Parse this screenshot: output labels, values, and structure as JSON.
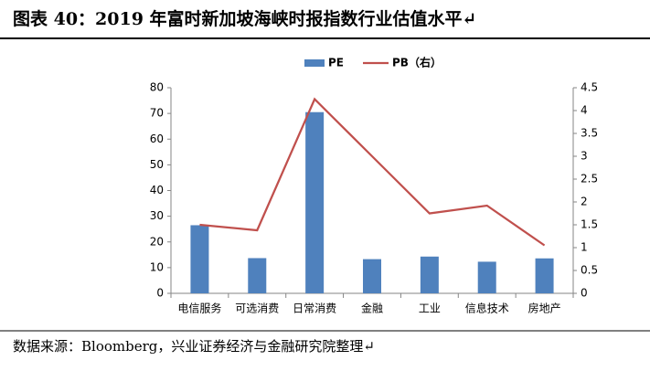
{
  "title": "图表 40：2019 年富时新加坡海峡时报指数行业估值水平↵",
  "source": "数据来源：Bloomberg，兴业证券经济与金融研究院整理↵",
  "chart_data": {
    "type": "bar",
    "categories": [
      "电信服务",
      "可选消费",
      "日常消费",
      "金融",
      "工业",
      "信息技术",
      "房地产"
    ],
    "series": [
      {
        "name": "PE",
        "type": "bar",
        "color": "#4f81bd",
        "values": [
          26.5,
          13.7,
          70.5,
          13.3,
          14.3,
          12.3,
          13.6
        ]
      },
      {
        "name": "PB（右）",
        "type": "line",
        "axis": "y2",
        "color": "#c0504d",
        "values": [
          1.5,
          1.38,
          4.25,
          3.0,
          1.75,
          1.92,
          1.05
        ]
      }
    ],
    "ylim": [
      0,
      80
    ],
    "yticks": [
      0,
      10,
      20,
      30,
      40,
      50,
      60,
      70,
      80
    ],
    "y2lim": [
      0,
      4.5
    ],
    "y2ticks": [
      0,
      0.5,
      1,
      1.5,
      2,
      2.5,
      3,
      3.5,
      4,
      4.5
    ],
    "legend": "top"
  }
}
